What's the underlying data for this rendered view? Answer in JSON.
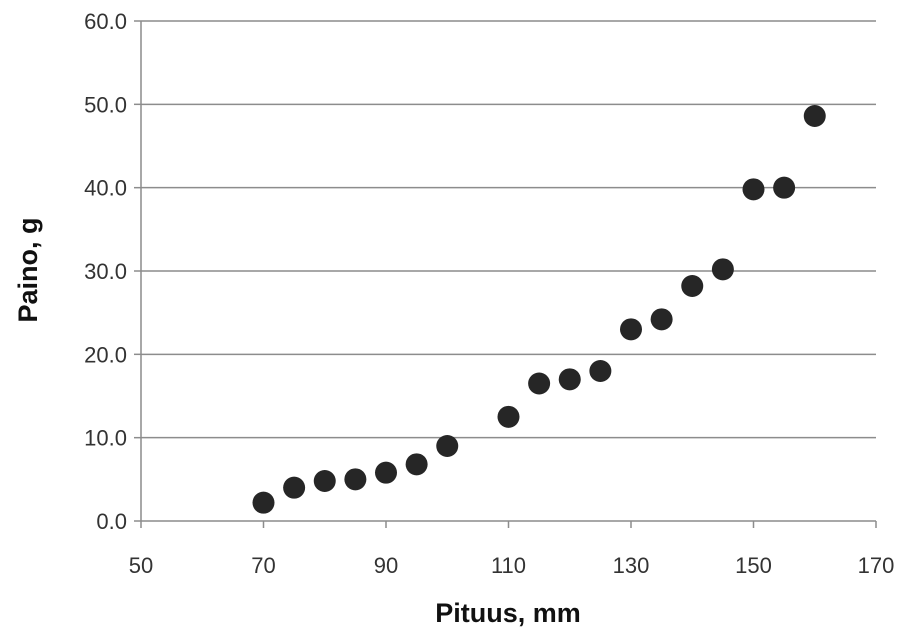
{
  "chart_data": {
    "type": "scatter",
    "title": "",
    "xlabel": "Pituus, mm",
    "ylabel": "Paino, g",
    "xlim": [
      50,
      170
    ],
    "ylim": [
      0,
      60
    ],
    "xticks": [
      "50",
      "70",
      "90",
      "110",
      "130",
      "150",
      "170"
    ],
    "yticks": [
      "0.0",
      "10.0",
      "20.0",
      "30.0",
      "40.0",
      "50.0",
      "60.0"
    ],
    "grid": "horizontal",
    "legend": "none",
    "marker_color": "#262626",
    "series": [
      {
        "x": [
          70,
          75,
          80,
          85,
          90,
          95,
          100,
          110,
          115,
          120,
          125,
          130,
          135,
          140,
          145,
          150,
          155,
          160
        ],
        "y": [
          2.2,
          4.0,
          4.8,
          5.0,
          5.8,
          6.8,
          9.0,
          12.5,
          16.5,
          17.0,
          18.0,
          23.0,
          24.2,
          28.2,
          30.2,
          39.8,
          40.0,
          48.6
        ]
      }
    ]
  }
}
